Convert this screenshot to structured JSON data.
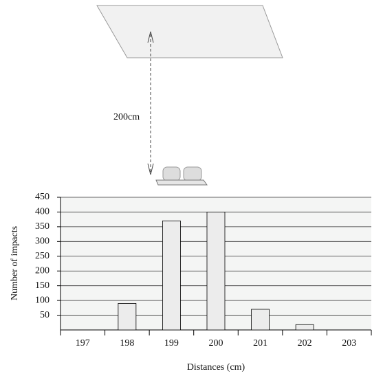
{
  "diagram": {
    "distance_label": "200cm"
  },
  "chart_data": {
    "type": "bar",
    "categories": [
      "197",
      "198",
      "199",
      "200",
      "201",
      "202",
      "203"
    ],
    "values": [
      0,
      90,
      370,
      400,
      70,
      18,
      0
    ],
    "color": "#ececec",
    "ylim": [
      0,
      450
    ],
    "yticks": [
      50,
      100,
      150,
      200,
      250,
      300,
      350,
      400,
      450
    ],
    "grid": true,
    "xlabel": "Distances (cm)",
    "ylabel": "Number of impacts"
  }
}
